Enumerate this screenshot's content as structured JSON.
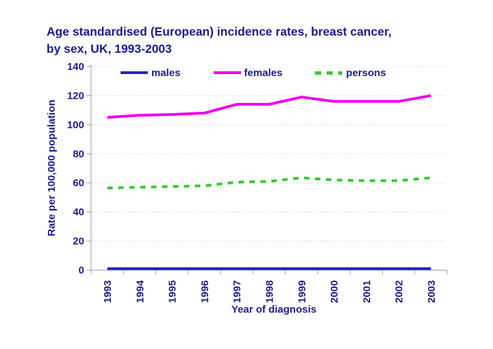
{
  "title_line1": "Age standardised (European) incidence rates, breast cancer,",
  "title_line2": "by sex, UK, 1993-2003",
  "colors": {
    "text_navy": "#1c1c8a",
    "males_line": "#2424c8",
    "females_line": "#ee00ee",
    "persons_line": "#33cc33",
    "gridline": "#d8d8d8",
    "axis": "#9a9aae"
  },
  "chart_data": {
    "type": "line",
    "title": "Age standardised (European) incidence rates, breast cancer, by sex, UK, 1993-2003",
    "x": [
      1993,
      1994,
      1995,
      1996,
      1997,
      1998,
      1999,
      2000,
      2001,
      2002,
      2003
    ],
    "series": [
      {
        "name": "males",
        "color": "#2424c8",
        "dash": null,
        "width": 4,
        "values": [
          1,
          1,
          1,
          1,
          1,
          1,
          1,
          1,
          1,
          1,
          1
        ]
      },
      {
        "name": "females",
        "color": "#ee00ee",
        "dash": null,
        "width": 4,
        "values": [
          105,
          106.5,
          107,
          108,
          114,
          114,
          119,
          116,
          116,
          116,
          120
        ]
      },
      {
        "name": "persons",
        "color": "#33cc33",
        "dash": "8 8",
        "width": 4,
        "values": [
          56.5,
          57,
          57.5,
          58,
          60.5,
          61,
          63.5,
          62,
          61.5,
          61.5,
          63.5
        ]
      }
    ],
    "xlabel": "Year of diagnosis",
    "ylabel": "Rate per 100,000 population",
    "ylim": [
      0,
      140
    ],
    "ytick_step": 20,
    "grid": "horizontal dotted",
    "legend_position": "top inside"
  }
}
